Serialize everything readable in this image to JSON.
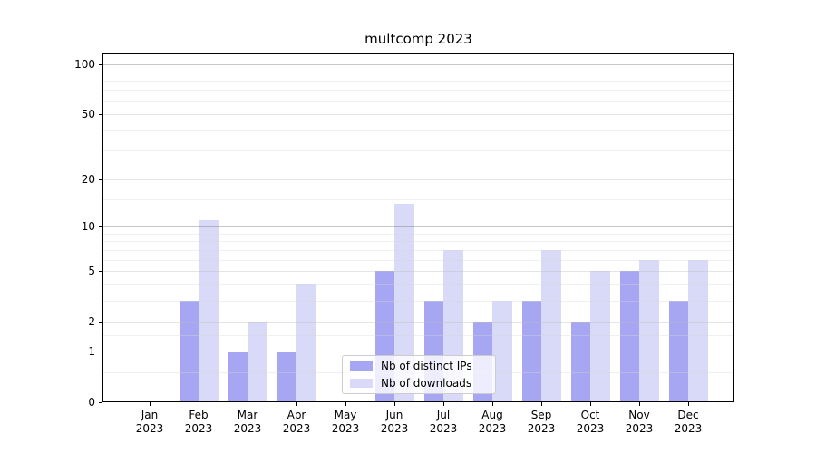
{
  "chart_data": {
    "type": "bar",
    "title": "multcomp 2023",
    "year_label": "2023",
    "categories": [
      "Jan",
      "Feb",
      "Mar",
      "Apr",
      "May",
      "Jun",
      "Jul",
      "Aug",
      "Sep",
      "Oct",
      "Nov",
      "Dec"
    ],
    "series": [
      {
        "name": "Nb of distinct IPs",
        "color": "#a6a6f2",
        "values": [
          0,
          3,
          1,
          1,
          0,
          5,
          3,
          2,
          3,
          2,
          5,
          3
        ]
      },
      {
        "name": "Nb of downloads",
        "color": "#d9d9f8",
        "values": [
          0,
          11,
          2,
          4,
          0,
          14,
          7,
          3,
          7,
          5,
          6,
          6
        ]
      }
    ],
    "y_axis": {
      "scale": "log1p",
      "tick_labels": [
        0,
        1,
        2,
        5,
        10,
        20,
        50,
        100
      ],
      "ylim": [
        0,
        115
      ],
      "major_gridlines": [
        1,
        10,
        100
      ],
      "mid_gridlines": [
        2,
        5,
        20,
        50
      ],
      "minor_gridlines": [
        0.5,
        1.5,
        3,
        4,
        6,
        7,
        8,
        9,
        15,
        30,
        40,
        60,
        70,
        80,
        90
      ],
      "grid": "on"
    },
    "legend": {
      "position": "lower center",
      "entries": [
        "Nb of distinct IPs",
        "Nb of downloads"
      ]
    },
    "colors": {
      "grid_major": "rgba(128,128,128,0.45)",
      "grid_mid": "rgba(190,190,190,0.40)",
      "grid_minor": "rgba(215,215,215,0.38)",
      "axis": "#000000",
      "text": "#000000"
    }
  }
}
